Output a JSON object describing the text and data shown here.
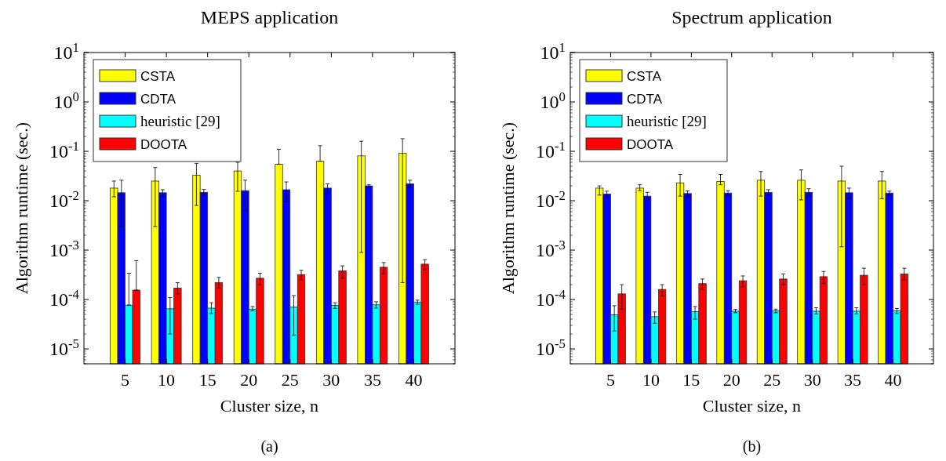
{
  "chart_data": [
    {
      "type": "bar",
      "title": "MEPS application",
      "xlabel": "Cluster size, n",
      "ylabel": "Algorithm runtime (sec.)",
      "categories": [
        "5",
        "10",
        "15",
        "20",
        "25",
        "30",
        "35",
        "40"
      ],
      "log": true,
      "ylim": [
        5e-06,
        10
      ],
      "yticks": [
        {
          "value": 1e-05,
          "label": "10$^{-5}$"
        },
        {
          "value": 0.0001,
          "label": "10$^{-4}$"
        },
        {
          "value": 0.001,
          "label": "10$^{-3}$"
        },
        {
          "value": 0.01,
          "label": "10$^{-2}$"
        },
        {
          "value": 0.1,
          "label": "10$^{-1}$"
        },
        {
          "value": 1,
          "label": "10$^{0}$"
        },
        {
          "value": 10,
          "label": "10$^{1}$"
        }
      ],
      "legend": "top left",
      "grid": false,
      "annotations": [
        "(a)"
      ],
      "series": [
        {
          "name": "CSTA",
          "color": "#ffff00",
          "values": [
            0.018,
            0.025,
            0.033,
            0.04,
            0.055,
            0.063,
            0.081,
            0.092
          ],
          "errors": [
            [
              0.012,
              0.025
            ],
            [
              0.003,
              0.047
            ],
            [
              0.008,
              0.057
            ],
            [
              0.0155,
              0.06
            ],
            [
              0.055,
              0.11
            ],
            [
              0.063,
              0.13
            ],
            [
              0.0009,
              0.16
            ],
            [
              0.00022,
              0.18
            ]
          ]
        },
        {
          "name": "CDTA",
          "color": "#0000ff",
          "values": [
            0.0145,
            0.0145,
            0.0148,
            0.016,
            0.0167,
            0.018,
            0.02,
            0.022
          ],
          "errors": [
            [
              0.003,
              0.026
            ],
            [
              0.012,
              0.0167
            ],
            [
              0.0128,
              0.0169
            ],
            [
              0.0063,
              0.026
            ],
            [
              0.0095,
              0.024
            ],
            [
              0.014,
              0.022
            ],
            [
              0.019,
              0.021
            ],
            [
              0.0184,
              0.026
            ]
          ]
        },
        {
          "name": "heuristic [29]",
          "color": "#00ffff",
          "values": [
            7.7e-05,
            6.5e-05,
            6.7e-05,
            6.4e-05,
            7e-05,
            7.6e-05,
            7.8e-05,
            8.9e-05
          ],
          "errors": [
            [
              7.7e-05,
              0.00034
            ],
            [
              2e-05,
              0.00011
            ],
            [
              5.2e-05,
              8.6e-05
            ],
            [
              5.9e-05,
              7.2e-05
            ],
            [
              1.9e-05,
              0.00012
            ],
            [
              6.6e-05,
              8.6e-05
            ],
            [
              6.7e-05,
              9e-05
            ],
            [
              8e-05,
              9.7e-05
            ]
          ]
        },
        {
          "name": "DOOTA",
          "color": "#ff0000",
          "values": [
            0.000155,
            0.00017,
            0.00022,
            0.00027,
            0.00032,
            0.00038,
            0.00045,
            0.00052
          ],
          "errors": [
            [
              0.000155,
              0.00061
            ],
            [
              0.00013,
              0.00022
            ],
            [
              0.00017,
              0.00028
            ],
            [
              0.0002,
              0.00034
            ],
            [
              0.00025,
              0.00039
            ],
            [
              0.00027,
              0.00048
            ],
            [
              0.00033,
              0.00056
            ],
            [
              0.0004,
              0.00064
            ]
          ]
        }
      ]
    },
    {
      "type": "bar",
      "title": "Spectrum application",
      "xlabel": "Cluster size, n",
      "ylabel": "Algorithm runtime (sec.)",
      "categories": [
        "5",
        "10",
        "15",
        "20",
        "25",
        "30",
        "35",
        "40"
      ],
      "log": true,
      "ylim": [
        5e-06,
        10
      ],
      "yticks": [
        {
          "value": 1e-05,
          "label": "10$^{-5}$"
        },
        {
          "value": 0.0001,
          "label": "10$^{-4}$"
        },
        {
          "value": 0.001,
          "label": "10$^{-3}$"
        },
        {
          "value": 0.01,
          "label": "10$^{-2}$"
        },
        {
          "value": 0.1,
          "label": "10$^{-1}$"
        },
        {
          "value": 1,
          "label": "10$^{0}$"
        },
        {
          "value": 10,
          "label": "10$^{1}$"
        }
      ],
      "legend": "top left",
      "grid": false,
      "annotations": [
        "(b)"
      ],
      "series": [
        {
          "name": "CSTA",
          "color": "#ffff00",
          "values": [
            0.018,
            0.018,
            0.023,
            0.0245,
            0.026,
            0.026,
            0.025,
            0.025
          ],
          "errors": [
            [
              0.013,
              0.02
            ],
            [
              0.016,
              0.021
            ],
            [
              0.0124,
              0.034
            ],
            [
              0.021,
              0.034
            ],
            [
              0.0124,
              0.039
            ],
            [
              0.0104,
              0.042
            ],
            [
              0.00117,
              0.05
            ],
            [
              0.011,
              0.039
            ]
          ]
        },
        {
          "name": "CDTA",
          "color": "#0000ff",
          "values": [
            0.0137,
            0.0124,
            0.014,
            0.0143,
            0.0148,
            0.0148,
            0.0145,
            0.0143
          ],
          "errors": [
            [
              0.0117,
              0.0156
            ],
            [
              0.0104,
              0.0148
            ],
            [
              0.012,
              0.0158
            ],
            [
              0.0129,
              0.016
            ],
            [
              0.013,
              0.0167
            ],
            [
              0.0124,
              0.0175
            ],
            [
              0.011,
              0.018
            ],
            [
              0.013,
              0.0156
            ]
          ]
        },
        {
          "name": "heuristic [29]",
          "color": "#00ffff",
          "values": [
            4.9e-05,
            4.5e-05,
            5.7e-05,
            5.8e-05,
            5.9e-05,
            5.8e-05,
            5.8e-05,
            5.9e-05
          ],
          "errors": [
            [
              2.3e-05,
              7.5e-05
            ],
            [
              3.3e-05,
              5.6e-05
            ],
            [
              4e-05,
              7.2e-05
            ],
            [
              5.4e-05,
              6.3e-05
            ],
            [
              5.4e-05,
              6.4e-05
            ],
            [
              5.1e-05,
              6.8e-05
            ],
            [
              5.1e-05,
              6.8e-05
            ],
            [
              5.2e-05,
              6.6e-05
            ]
          ]
        },
        {
          "name": "DOOTA",
          "color": "#ff0000",
          "values": [
            0.00013,
            0.00016,
            0.00021,
            0.00024,
            0.00026,
            0.00029,
            0.00031,
            0.00033
          ],
          "errors": [
            [
              6.4e-05,
              0.0002
            ],
            [
              0.000117,
              0.0002
            ],
            [
              0.00016,
              0.00026
            ],
            [
              0.00018,
              0.0003
            ],
            [
              0.0002,
              0.00033
            ],
            [
              0.00021,
              0.00037
            ],
            [
              0.0002,
              0.00043
            ],
            [
              0.00025,
              0.00043
            ]
          ]
        }
      ]
    }
  ]
}
